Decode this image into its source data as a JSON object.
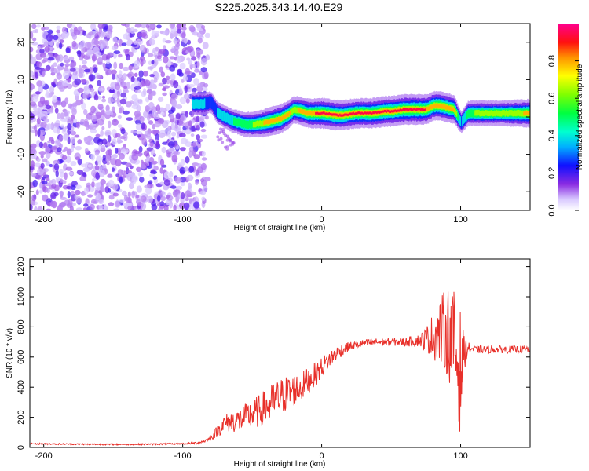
{
  "title": "S225.2025.343.14.40.E29",
  "chart_data": [
    {
      "type": "heatmap",
      "name": "spectrogram",
      "xlabel": "Height of straight line (km)",
      "ylabel": "Frequency (Hz)",
      "xlim": [
        -210,
        150
      ],
      "ylim": [
        -25,
        25
      ],
      "xticks": [
        -200,
        -100,
        0,
        100
      ],
      "xtick_labels": [
        "-200",
        "-100",
        "0",
        "100"
      ],
      "yticks": [
        -20,
        -10,
        0,
        10,
        20
      ],
      "ytick_labels": [
        "-20",
        "-10",
        "0",
        "10",
        "20"
      ],
      "noise_region_x": [
        -210,
        -82
      ],
      "ridge": {
        "x": [
          -93,
          -85,
          -80,
          -75,
          -70,
          -65,
          -60,
          -55,
          -50,
          -45,
          -40,
          -35,
          -30,
          -25,
          -20,
          -15,
          -10,
          -5,
          0,
          5,
          10,
          15,
          20,
          25,
          30,
          35,
          40,
          45,
          50,
          55,
          60,
          65,
          70,
          75,
          80,
          85,
          90,
          95,
          100,
          105,
          110,
          115,
          120,
          125,
          130,
          135,
          140,
          145,
          150
        ],
        "y": [
          3.5,
          3.5,
          4,
          1,
          0,
          -1,
          -1.5,
          -2,
          -2,
          -1.8,
          -1.5,
          -1,
          -0.5,
          0.5,
          2,
          1.5,
          1,
          1,
          1,
          0.8,
          0.5,
          0.5,
          0.8,
          1,
          1,
          1,
          1.2,
          1.5,
          1.5,
          1.8,
          2,
          2,
          2,
          2,
          3,
          3,
          2.5,
          2,
          -1.5,
          1,
          1,
          1,
          1,
          1,
          1,
          1,
          1,
          1,
          1
        ],
        "amplitude": [
          0.35,
          0.35,
          0.3,
          0.35,
          0.4,
          0.45,
          0.5,
          0.55,
          0.6,
          0.7,
          0.8,
          0.85,
          0.85,
          0.8,
          0.7,
          0.8,
          0.85,
          0.9,
          0.95,
          0.95,
          0.95,
          0.9,
          0.9,
          0.9,
          0.9,
          0.9,
          0.95,
          0.95,
          0.95,
          0.95,
          0.95,
          0.95,
          0.95,
          0.9,
          0.85,
          0.85,
          0.85,
          0.8,
          0.3,
          0.55,
          0.6,
          0.6,
          0.6,
          0.6,
          0.6,
          0.65,
          0.7,
          0.75,
          0.8
        ]
      }
    },
    {
      "type": "colorbar",
      "name": "amplitude-colorbar",
      "label": "Normalized spectral amplitude",
      "range": [
        0.0,
        1.0
      ],
      "ticks": [
        0.0,
        0.2,
        0.4,
        0.6,
        0.8
      ],
      "tick_labels": [
        "0.0",
        "0.2",
        "0.4",
        "0.6",
        "0.8"
      ]
    },
    {
      "type": "line",
      "name": "snr",
      "xlabel": "Height of straight line (km)",
      "ylabel": "SNR (10 * v/v)",
      "xlim": [
        -210,
        150
      ],
      "ylim": [
        0,
        1250
      ],
      "xticks": [
        -200,
        -100,
        0,
        100
      ],
      "xtick_labels": [
        "-200",
        "-100",
        "0",
        "100"
      ],
      "yticks": [
        0,
        200,
        400,
        600,
        800,
        1000,
        1200
      ],
      "ytick_labels": [
        "0",
        "200",
        "400",
        "600",
        "800",
        "1000",
        "1200"
      ],
      "series": [
        {
          "name": "SNR",
          "color": "#e8302a",
          "x": [
            -210,
            -180,
            -150,
            -120,
            -100,
            -90,
            -85,
            -80,
            -75,
            -70,
            -65,
            -60,
            -55,
            -50,
            -45,
            -40,
            -35,
            -30,
            -25,
            -20,
            -15,
            -10,
            -5,
            0,
            5,
            10,
            15,
            20,
            25,
            30,
            40,
            50,
            60,
            70,
            75,
            80,
            85,
            90,
            95,
            98,
            100,
            102,
            105,
            110,
            120,
            130,
            140,
            150
          ],
          "y": [
            25,
            22,
            20,
            22,
            25,
            30,
            40,
            60,
            110,
            160,
            170,
            180,
            200,
            220,
            240,
            270,
            300,
            330,
            360,
            380,
            400,
            440,
            480,
            530,
            580,
            620,
            650,
            670,
            680,
            690,
            700,
            700,
            700,
            710,
            720,
            740,
            760,
            780,
            700,
            550,
            500,
            620,
            660,
            650,
            650,
            650,
            650,
            650
          ],
          "noise_amplitude": [
            5,
            5,
            5,
            5,
            5,
            8,
            10,
            15,
            40,
            60,
            70,
            80,
            90,
            100,
            110,
            120,
            130,
            130,
            120,
            110,
            100,
            90,
            80,
            70,
            60,
            50,
            40,
            30,
            25,
            25,
            25,
            25,
            30,
            40,
            80,
            150,
            220,
            300,
            350,
            400,
            420,
            150,
            40,
            25,
            25,
            25,
            25,
            25
          ]
        }
      ]
    }
  ]
}
